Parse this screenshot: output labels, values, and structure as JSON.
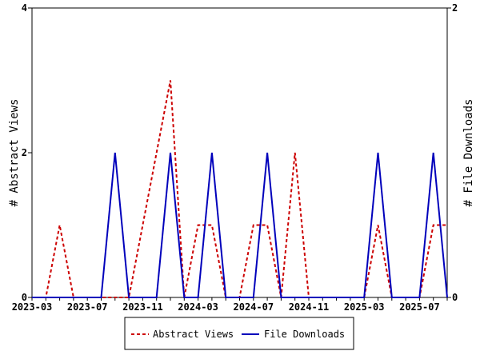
{
  "chart_data": {
    "type": "line",
    "x": [
      "2023-03",
      "2023-04",
      "2023-05",
      "2023-06",
      "2023-07",
      "2023-08",
      "2023-09",
      "2023-10",
      "2023-11",
      "2023-12",
      "2024-01",
      "2024-02",
      "2024-03",
      "2024-04",
      "2024-05",
      "2024-06",
      "2024-07",
      "2024-08",
      "2024-09",
      "2024-10",
      "2024-11",
      "2024-12",
      "2025-01",
      "2025-02",
      "2025-03",
      "2025-04",
      "2025-05",
      "2025-06",
      "2025-07",
      "2025-08",
      "2025-09"
    ],
    "xticks": [
      "2023-03",
      "2023-07",
      "2023-11",
      "2024-03",
      "2024-07",
      "2024-11",
      "2025-03",
      "2025-07"
    ],
    "series": [
      {
        "name": "Abstract Views",
        "axis": "left",
        "color": "#cc0000",
        "style": "dashed",
        "values": [
          0,
          0,
          1,
          0,
          0,
          0,
          0,
          0,
          1,
          2,
          3,
          0,
          1,
          1,
          0,
          0,
          1,
          1,
          0,
          2,
          0,
          0,
          0,
          0,
          0,
          1,
          0,
          0,
          0,
          1,
          1
        ]
      },
      {
        "name": "File Downloads",
        "axis": "right",
        "color": "#0000bb",
        "style": "solid",
        "values": [
          0,
          0,
          0,
          0,
          0,
          0,
          1,
          0,
          0,
          0,
          1,
          0,
          0,
          1,
          0,
          0,
          0,
          1,
          0,
          0,
          0,
          0,
          0,
          0,
          0,
          1,
          0,
          0,
          0,
          1,
          0
        ]
      }
    ],
    "ylabel": "# Abstract Views",
    "y2label": "# File Downloads",
    "ylim": [
      0,
      4
    ],
    "y2lim": [
      0,
      2
    ],
    "yticks": [
      "0",
      "2",
      "4"
    ],
    "y2ticks": [
      "0",
      "2"
    ],
    "legend": "bottom",
    "grid": false
  }
}
